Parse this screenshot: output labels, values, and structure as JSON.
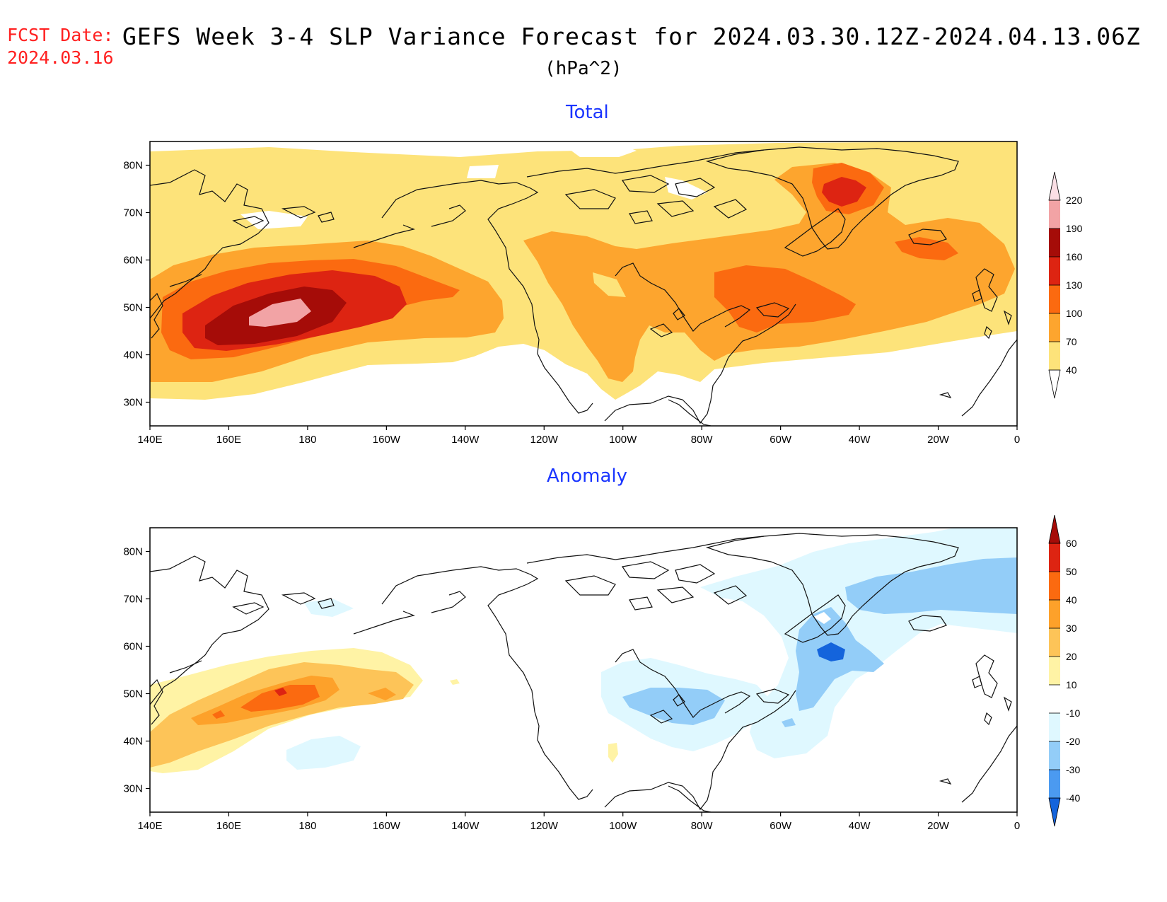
{
  "header": {
    "fcst_label": "FCST Date:",
    "fcst_date": "2024.03.16",
    "title": "GEFS Week 3-4 SLP Variance Forecast for 2024.03.30.12Z-2024.04.13.06Z",
    "units": "(hPa^2)"
  },
  "map": {
    "projection": "lat-lon",
    "lon_range": [
      "140E",
      "0"
    ],
    "lat_range": [
      25,
      85
    ],
    "lat_ticks": [
      "30N",
      "40N",
      "50N",
      "60N",
      "70N",
      "80N"
    ],
    "lon_ticks": [
      "140E",
      "160E",
      "180",
      "160W",
      "140W",
      "120W",
      "100W",
      "80W",
      "60W",
      "40W",
      "20W",
      "0"
    ]
  },
  "panels": [
    {
      "title": "Total",
      "colorbar": {
        "levels": [
          "40",
          "70",
          "100",
          "130",
          "160",
          "190",
          "220"
        ],
        "colors": [
          "#fde37a",
          "#fda52e",
          "#fb6a10",
          "#dd2412",
          "#a50c08",
          "#f2a3a5",
          "#fbdfe5"
        ]
      }
    },
    {
      "title": "Anomaly",
      "colorbar": {
        "levels": [
          "-40",
          "-30",
          "-20",
          "-10",
          "10",
          "20",
          "30",
          "40",
          "50",
          "60"
        ],
        "colors": [
          "#1464dc",
          "#4b9af0",
          "#93cdf8",
          "#dff8ff",
          "#ffffff",
          "#fff3a5",
          "#fdc458",
          "#fda12a",
          "#fb6a10",
          "#dd2412",
          "#a50c08"
        ]
      }
    }
  ]
}
